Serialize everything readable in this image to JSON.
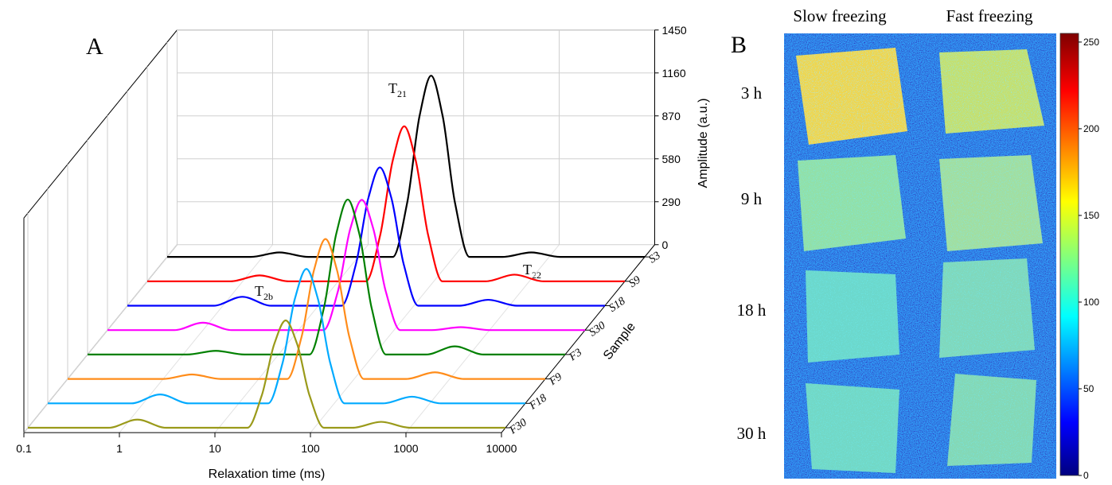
{
  "chart_data": [
    {
      "type": "waterfall",
      "panel_label": "A",
      "xlabel": "Relaxation time (ms)",
      "ylabel": "Amplitude (a.u.)",
      "zlabel": "Sample",
      "xscale": "log",
      "xlim": [
        0.1,
        10000
      ],
      "xticks": [
        0.1,
        1,
        10,
        100,
        1000,
        10000
      ],
      "ylim": [
        0,
        1450
      ],
      "yticks": [
        0,
        290,
        580,
        870,
        1160,
        1450
      ],
      "grid": true,
      "annotations": [
        {
          "text": "T",
          "subscript": "21"
        },
        {
          "text": "T",
          "subscript": "22"
        },
        {
          "text": "T",
          "subscript": "2b"
        }
      ],
      "series": [
        {
          "name": "S3",
          "color": "#000000",
          "x": [
            0.1,
            0.75,
            1.5,
            3,
            23.1,
            32.6,
            44,
            58,
            76.4,
            103,
            146,
            325,
            650,
            1300,
            10000
          ],
          "values": [
            0,
            0,
            30,
            0,
            0,
            367,
            955,
            1224,
            955,
            367,
            0,
            0,
            30,
            0,
            0
          ]
        },
        {
          "name": "S9",
          "color": "#ff0000",
          "x": [
            0.1,
            0.75,
            1.5,
            3,
            19.5,
            27.5,
            37.2,
            49,
            64.6,
            87.1,
            123,
            350,
            700,
            1400,
            10000
          ],
          "values": [
            0,
            0,
            40,
            0,
            0,
            314,
            817,
            1047,
            817,
            314,
            0,
            0,
            45,
            0,
            0
          ]
        },
        {
          "name": "S18",
          "color": "#0000ff",
          "x": [
            0.1,
            0.8,
            1.6,
            3.2,
            17.5,
            24.7,
            33.4,
            44,
            58,
            78.2,
            111,
            300,
            600,
            1200,
            10000
          ],
          "values": [
            0,
            0,
            60,
            0,
            0,
            280,
            729,
            934,
            729,
            280,
            0,
            0,
            40,
            0,
            0
          ]
        },
        {
          "name": "S30",
          "color": "#ff00ff",
          "x": [
            0.1,
            0.5,
            1,
            2,
            18.3,
            25.9,
            34.9,
            46,
            60.6,
            81.8,
            116,
            250,
            500,
            1000,
            10000
          ],
          "values": [
            0,
            0,
            50,
            0,
            0,
            264,
            686,
            880,
            686,
            264,
            0,
            0,
            20,
            0,
            0
          ]
        },
        {
          "name": "F3",
          "color": "#008000",
          "x": [
            0.1,
            1.1,
            2.2,
            4.4,
            21.1,
            29.8,
            40.2,
            53,
            69.9,
            94.2,
            133,
            350,
            700,
            1400,
            10000
          ],
          "values": [
            0,
            0,
            25,
            0,
            0,
            314,
            817,
            1047,
            817,
            314,
            0,
            0,
            55,
            0,
            0
          ]
        },
        {
          "name": "F9",
          "color": "#ff8c1a",
          "x": [
            0.1,
            1,
            2,
            4,
            19.9,
            28.1,
            38,
            50,
            65.9,
            88.9,
            126,
            350,
            700,
            1400,
            10000
          ],
          "values": [
            0,
            0,
            30,
            0,
            0,
            284,
            737,
            945,
            737,
            284,
            0,
            0,
            45,
            0,
            0
          ]
        },
        {
          "name": "F18",
          "color": "#00aaff",
          "x": [
            0.1,
            0.75,
            1.5,
            3,
            20.3,
            28.7,
            38.7,
            51,
            67.2,
            90.7,
            128,
            325,
            650,
            1300,
            10000
          ],
          "values": [
            0,
            0,
            60,
            0,
            0,
            272,
            708,
            908,
            708,
            272,
            0,
            0,
            45,
            0,
            0
          ]
        },
        {
          "name": "F30",
          "color": "#9a9a1a",
          "x": [
            0.1,
            0.7,
            1.4,
            2.8,
            19.9,
            28.1,
            38,
            50,
            65.9,
            88.9,
            126,
            250,
            500,
            1000,
            10000
          ],
          "values": [
            0,
            0,
            55,
            0,
            0,
            218,
            566,
            725,
            566,
            218,
            0,
            0,
            40,
            0,
            0
          ]
        }
      ]
    },
    {
      "type": "image",
      "panel_label": "B",
      "column_labels": [
        "Slow freezing",
        "Fast freezing"
      ],
      "row_labels": [
        "3 h",
        "9 h",
        "18 h",
        "30 h"
      ],
      "colorbar": {
        "colormap": "jet",
        "clim": [
          0,
          255
        ],
        "ticks": [
          0,
          50,
          100,
          150,
          200,
          250
        ]
      }
    }
  ]
}
